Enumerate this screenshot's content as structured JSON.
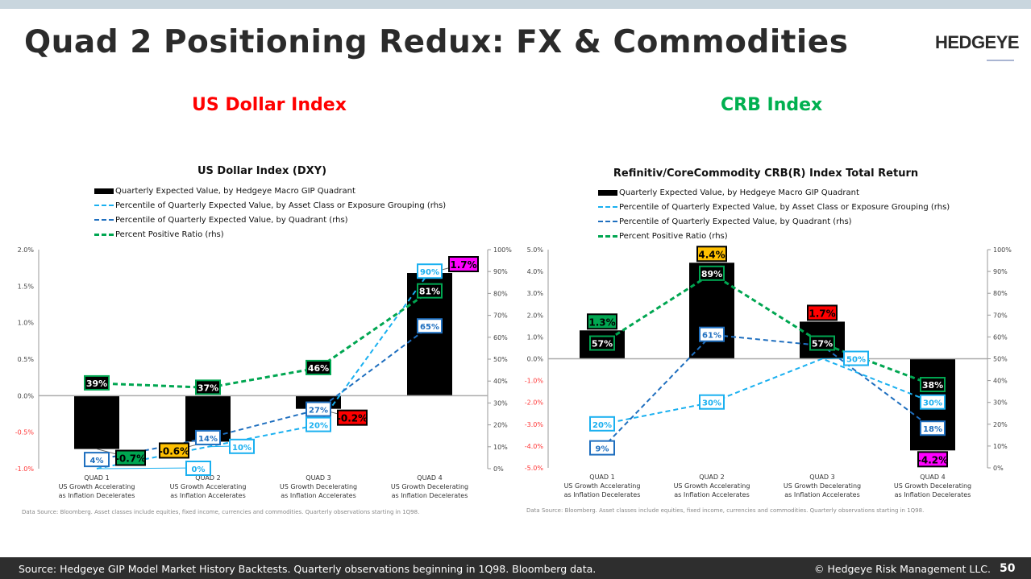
{
  "header": {
    "title": "Quad 2 Positioning Redux: FX & Commodities",
    "logo": "HEDGEYE"
  },
  "sections": [
    {
      "title": "US Dollar Index",
      "color": "#ff0000"
    },
    {
      "title": "CRB Index",
      "color": "#00b050"
    }
  ],
  "legend": [
    "Quarterly Expected Value, by Hedgeye Macro GIP Quadrant",
    "Percentile of Quarterly Expected Value, by Asset Class or Exposure Grouping (rhs)",
    "Percentile of Quarterly Expected Value, by Quadrant (rhs)",
    "Percent Positive Ratio (rhs)"
  ],
  "colors": {
    "bar": "#000000",
    "asset_pct": "#1ab0f0",
    "quad_pct": "#1f6fbf",
    "pos_ratio": "#00a651",
    "quad_fills": [
      "#00a651",
      "#ffc000",
      "#ff0000",
      "#ff00ff"
    ]
  },
  "chart_data": [
    {
      "type": "bar",
      "title": "US Dollar Index (DXY)",
      "categories": [
        [
          "QUAD 1",
          "US Growth Accelerating",
          "as Inflation Decelerates"
        ],
        [
          "QUAD 2",
          "US Growth Accelerating",
          "as Inflation Accelerates"
        ],
        [
          "QUAD 3",
          "US Growth Decelerating",
          "as Inflation Accelerates"
        ],
        [
          "QUAD 4",
          "US Growth Decelerating",
          "as Inflation Decelerates"
        ]
      ],
      "ylim": [
        -1.0,
        2.0
      ],
      "yticks": [
        "-1.0%",
        "-0.5%",
        "0.0%",
        "0.5%",
        "1.0%",
        "1.5%",
        "2.0%"
      ],
      "y2lim": [
        0,
        100
      ],
      "y2ticks": [
        "0%",
        "10%",
        "20%",
        "30%",
        "40%",
        "50%",
        "60%",
        "70%",
        "80%",
        "90%",
        "100%"
      ],
      "bars": {
        "values": [
          -0.73,
          -0.63,
          -0.18,
          1.68
        ],
        "labels": [
          "-0.7%",
          "-0.6%",
          "-0.2%",
          "1.7%"
        ]
      },
      "series": [
        {
          "key": "asset_pct",
          "values": [
            0,
            10,
            20,
            90
          ],
          "labels": [
            "0%",
            "10%",
            "20%",
            "90%"
          ]
        },
        {
          "key": "quad_pct",
          "values": [
            4,
            14,
            27,
            65
          ],
          "labels": [
            "4%",
            "14%",
            "27%",
            "65%"
          ]
        },
        {
          "key": "pos_ratio",
          "values": [
            39,
            37,
            46,
            81
          ],
          "labels": [
            "39%",
            "37%",
            "46%",
            "81%"
          ]
        }
      ],
      "source": "Data Source: Bloomberg. Asset classes include equities, fixed income, currencies and commodities. Quarterly observations starting in 1Q98."
    },
    {
      "type": "bar",
      "title": "Refinitiv/CoreCommodity CRB(R) Index Total Return",
      "categories": [
        [
          "QUAD 1",
          "US Growth Accelerating",
          "as Inflation Decelerates"
        ],
        [
          "QUAD 2",
          "US Growth Accelerating",
          "as Inflation Accelerates"
        ],
        [
          "QUAD 3",
          "US Growth Decelerating",
          "as Inflation Accelerates"
        ],
        [
          "QUAD 4",
          "US Growth Decelerating",
          "as Inflation Decelerates"
        ]
      ],
      "ylim": [
        -5.0,
        5.0
      ],
      "yticks": [
        "-5.0%",
        "-4.0%",
        "-3.0%",
        "-2.0%",
        "-1.0%",
        "0.0%",
        "1.0%",
        "2.0%",
        "3.0%",
        "4.0%",
        "5.0%"
      ],
      "y2lim": [
        0,
        100
      ],
      "y2ticks": [
        "0%",
        "10%",
        "20%",
        "30%",
        "40%",
        "50%",
        "60%",
        "70%",
        "80%",
        "90%",
        "100%"
      ],
      "bars": {
        "values": [
          1.3,
          4.4,
          1.7,
          -4.2
        ],
        "labels": [
          "1.3%",
          "4.4%",
          "1.7%",
          "-4.2%"
        ]
      },
      "series": [
        {
          "key": "asset_pct",
          "values": [
            20,
            30,
            50,
            30
          ],
          "labels": [
            "20%",
            "30%",
            "50%",
            "30%"
          ]
        },
        {
          "key": "quad_pct",
          "values": [
            9,
            61,
            56,
            18
          ],
          "labels": [
            "9%",
            "61%",
            "",
            "18%"
          ]
        },
        {
          "key": "pos_ratio",
          "values": [
            57,
            89,
            57,
            38
          ],
          "labels": [
            "57%",
            "89%",
            "57%",
            "38%"
          ]
        }
      ],
      "source": "Data Source: Bloomberg. Asset classes include equities, fixed income, currencies and commodities. Quarterly observations starting in 1Q98."
    }
  ],
  "footer": {
    "source": "Source: Hedgeye GIP Model Market History Backtests. Quarterly observations beginning in 1Q98. Bloomberg data.",
    "copyright": "© Hedgeye Risk Management LLC.",
    "page": "50"
  }
}
